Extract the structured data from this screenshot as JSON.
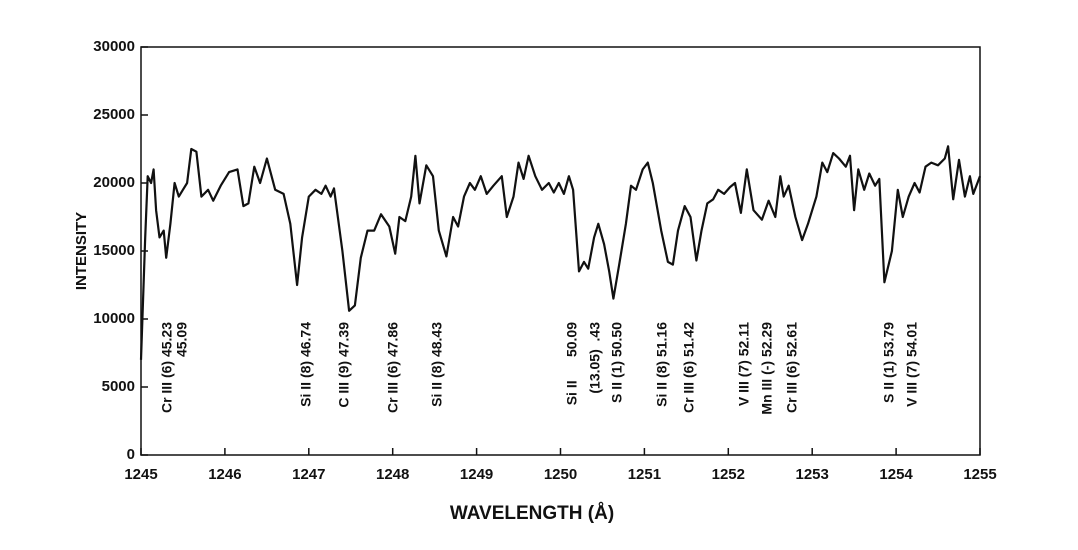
{
  "chart_data": {
    "type": "line",
    "xlabel": "WAVELENGTH (Å)",
    "ylabel": "INTENSITY",
    "x": [
      1245.0,
      1245.05,
      1245.08,
      1245.12,
      1245.15,
      1245.18,
      1245.22,
      1245.27,
      1245.3,
      1245.35,
      1245.4,
      1245.45,
      1245.5,
      1245.55,
      1245.6,
      1245.66,
      1245.72,
      1245.8,
      1245.86,
      1245.95,
      1246.05,
      1246.15,
      1246.22,
      1246.28,
      1246.35,
      1246.42,
      1246.5,
      1246.6,
      1246.7,
      1246.78,
      1246.86,
      1246.92,
      1247.0,
      1247.08,
      1247.15,
      1247.2,
      1247.26,
      1247.3,
      1247.4,
      1247.48,
      1247.55,
      1247.62,
      1247.7,
      1247.78,
      1247.86,
      1247.96,
      1248.03,
      1248.08,
      1248.15,
      1248.22,
      1248.27,
      1248.32,
      1248.4,
      1248.48,
      1248.55,
      1248.64,
      1248.72,
      1248.78,
      1248.85,
      1248.92,
      1248.98,
      1249.05,
      1249.12,
      1249.2,
      1249.3,
      1249.36,
      1249.44,
      1249.5,
      1249.56,
      1249.62,
      1249.7,
      1249.78,
      1249.86,
      1249.92,
      1249.98,
      1250.04,
      1250.1,
      1250.15,
      1250.22,
      1250.28,
      1250.33,
      1250.4,
      1250.45,
      1250.52,
      1250.58,
      1250.63,
      1250.7,
      1250.78,
      1250.84,
      1250.9,
      1250.98,
      1251.04,
      1251.1,
      1251.2,
      1251.28,
      1251.34,
      1251.4,
      1251.48,
      1251.55,
      1251.62,
      1251.68,
      1251.75,
      1251.82,
      1251.88,
      1251.95,
      1252.02,
      1252.08,
      1252.15,
      1252.22,
      1252.3,
      1252.4,
      1252.48,
      1252.56,
      1252.62,
      1252.66,
      1252.72,
      1252.8,
      1252.88,
      1252.95,
      1253.05,
      1253.12,
      1253.18,
      1253.25,
      1253.32,
      1253.4,
      1253.45,
      1253.5,
      1253.55,
      1253.62,
      1253.68,
      1253.75,
      1253.8,
      1253.86,
      1253.95,
      1254.02,
      1254.08,
      1254.15,
      1254.22,
      1254.28,
      1254.35,
      1254.42,
      1254.5,
      1254.58,
      1254.62,
      1254.68,
      1254.75,
      1254.82,
      1254.88,
      1254.92,
      1255.0
    ],
    "values": [
      7000,
      16000,
      20500,
      20000,
      21000,
      18000,
      16000,
      16500,
      14500,
      17000,
      20000,
      19000,
      19500,
      20000,
      22500,
      22300,
      19000,
      19500,
      18700,
      19800,
      20800,
      21000,
      18300,
      18500,
      21200,
      20000,
      21800,
      19500,
      19200,
      17000,
      12500,
      16000,
      19000,
      19500,
      19200,
      19800,
      19000,
      19600,
      15000,
      10600,
      11000,
      14500,
      16500,
      16500,
      17700,
      16800,
      14800,
      17500,
      17200,
      19000,
      22000,
      18500,
      21300,
      20500,
      16500,
      14600,
      17500,
      16800,
      19000,
      20000,
      19500,
      20500,
      19200,
      19800,
      20500,
      17500,
      19000,
      21500,
      20300,
      22000,
      20500,
      19500,
      20000,
      19300,
      20000,
      19200,
      20500,
      19500,
      13500,
      14200,
      13700,
      16000,
      17000,
      15500,
      13500,
      11500,
      14000,
      17000,
      19800,
      19500,
      21000,
      21500,
      20000,
      16500,
      14200,
      14000,
      16500,
      18300,
      17500,
      14300,
      16500,
      18500,
      18800,
      19500,
      19200,
      19700,
      20000,
      17800,
      21000,
      18000,
      17300,
      18700,
      17500,
      20500,
      19000,
      19800,
      17500,
      15800,
      17000,
      19000,
      21500,
      20800,
      22200,
      21800,
      21200,
      22000,
      18000,
      21000,
      19500,
      20700,
      19800,
      20300,
      12700,
      15000,
      19500,
      17500,
      19000,
      20000,
      19300,
      21200,
      21500,
      21300,
      21800,
      22700,
      18800,
      21700,
      19000,
      20500,
      19200,
      20500
    ],
    "color": "#111111",
    "xlim": [
      1245,
      1255
    ],
    "xticks": [
      1245,
      1246,
      1247,
      1248,
      1249,
      1250,
      1251,
      1252,
      1253,
      1254,
      1255
    ],
    "ylim": [
      0,
      30000
    ],
    "yticks": [
      0,
      5000,
      10000,
      15000,
      20000,
      25000,
      30000
    ],
    "annotations": [
      "Cr III (6) 45.23",
      "45.09",
      "Si II (8) 46.74",
      "C III (9) 47.39",
      "Cr III (6) 47.86",
      "Si II (8) 48.43",
      "Si II      50.09",
      "(13.05)  .43",
      "S II (1) 50.50",
      "Si II (8) 51.16",
      "Cr III (6) 51.42",
      "V III (7) 52.11",
      "Mn III (-) 52.29",
      "Cr III (6) 52.61",
      "S II (1) 53.79",
      "V III (7) 54.01"
    ]
  }
}
